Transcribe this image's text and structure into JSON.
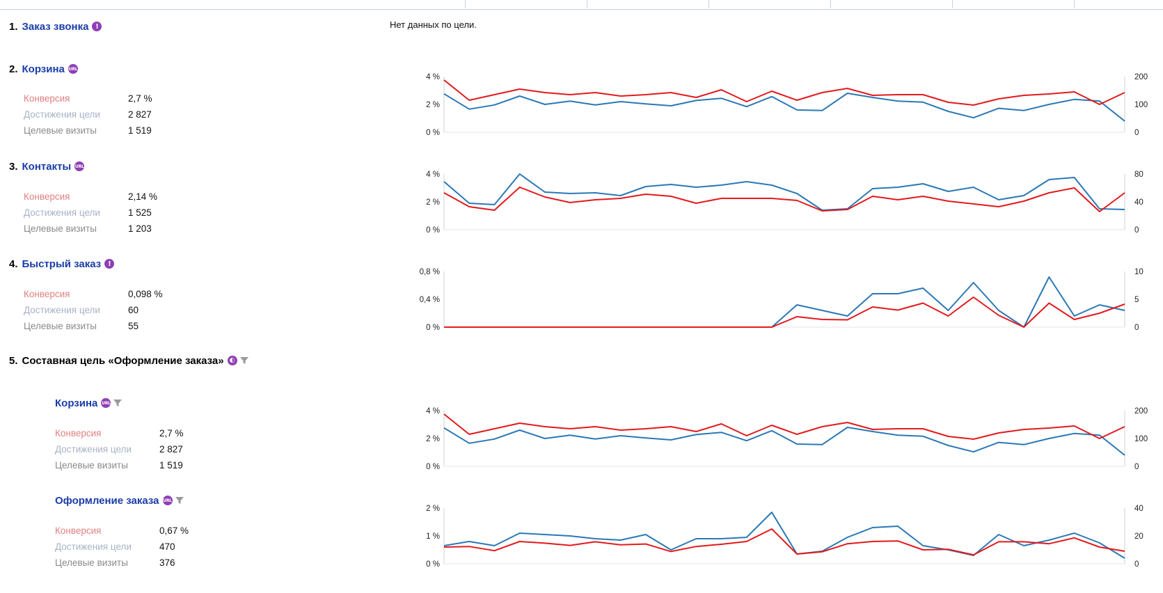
{
  "no_data_text": "Нет данных по цели.",
  "goals": [
    {
      "num": "1.",
      "title": "Заказ звонка",
      "badge": "!",
      "badge_icon": "exclamation-icon"
    },
    {
      "num": "2.",
      "title": "Корзина",
      "badge": "URL",
      "badge_icon": "url-icon",
      "stats": {
        "conv_label": "Конверсия",
        "conv": "2,7 %",
        "reach_label": "Достижения цели",
        "reach": "2 827",
        "visits_label": "Целевые визиты",
        "visits": "1 519"
      }
    },
    {
      "num": "3.",
      "title": "Контакты",
      "badge": "URL",
      "badge_icon": "url-icon",
      "stats": {
        "conv_label": "Конверсия",
        "conv": "2,14 %",
        "reach_label": "Достижения цели",
        "reach": "1 525",
        "visits_label": "Целевые визиты",
        "visits": "1 203"
      }
    },
    {
      "num": "4.",
      "title": "Быстрый заказ",
      "badge": "!",
      "badge_icon": "exclamation-icon",
      "stats": {
        "conv_label": "Конверсия",
        "conv": "0,098 %",
        "reach_label": "Достижения цели",
        "reach": "60",
        "visits_label": "Целевые визиты",
        "visits": "55"
      }
    },
    {
      "num": "5.",
      "title": "Составная цель «Оформление заказа»",
      "badge": "◐",
      "badge_icon": "compound-goal-icon",
      "filter_icon": "funnel-icon"
    }
  ],
  "steps": [
    {
      "title": "Корзина",
      "badge": "URL",
      "badge_icon": "url-icon",
      "filter_icon": "funnel-icon",
      "stats": {
        "conv_label": "Конверсия",
        "conv": "2,7 %",
        "reach_label": "Достижения цели",
        "reach": "2 827",
        "visits_label": "Целевые визиты",
        "visits": "1 519"
      }
    },
    {
      "title": "Оформление заказа",
      "badge": "URL",
      "badge_icon": "url-icon",
      "filter_icon": "funnel-icon",
      "stats": {
        "conv_label": "Конверсия",
        "conv": "0,67 %",
        "reach_label": "Достижения цели",
        "reach": "470",
        "visits_label": "Целевые визиты",
        "visits": "376"
      }
    }
  ],
  "colors": {
    "conversion_line": "#e3191c",
    "reach_line": "#2a78b5",
    "link": "#1a3da8",
    "badge": "#8e3fb4"
  },
  "chart_data": [
    {
      "type": "line",
      "title": "",
      "goal": "Корзина",
      "left_ticks": [
        "4 %",
        "2 %",
        "0 %"
      ],
      "right_ticks": [
        "200",
        "100",
        "0"
      ],
      "ylim_left": [
        0,
        4
      ],
      "ylim_right": [
        0,
        200
      ],
      "series": [
        {
          "name": "Конверсия",
          "axis": "left",
          "values": [
            3.75,
            2.3,
            2.7,
            3.1,
            2.85,
            2.7,
            2.85,
            2.6,
            2.7,
            2.85,
            2.5,
            3.05,
            2.2,
            2.95,
            2.3,
            2.85,
            3.15,
            2.65,
            2.7,
            2.7,
            2.15,
            1.95,
            2.4,
            2.65,
            2.75,
            2.9,
            2.0,
            2.85
          ]
        },
        {
          "name": "Достижения цели",
          "axis": "right",
          "values": [
            138,
            83,
            98,
            130,
            100,
            112,
            98,
            110,
            102,
            95,
            114,
            122,
            92,
            128,
            80,
            78,
            140,
            125,
            112,
            108,
            75,
            52,
            86,
            78,
            100,
            118,
            112,
            40
          ]
        }
      ]
    },
    {
      "type": "line",
      "title": "",
      "goal": "Контакты",
      "left_ticks": [
        "4 %",
        "2 %",
        "0 %"
      ],
      "right_ticks": [
        "80",
        "40",
        "0"
      ],
      "ylim_left": [
        0,
        4
      ],
      "ylim_right": [
        0,
        80
      ],
      "series": [
        {
          "name": "Конверсия",
          "axis": "left",
          "values": [
            2.65,
            1.65,
            1.4,
            3.05,
            2.35,
            1.95,
            2.15,
            2.25,
            2.55,
            2.4,
            1.9,
            2.25,
            2.25,
            2.25,
            2.1,
            1.35,
            1.45,
            2.4,
            2.15,
            2.4,
            2.05,
            1.85,
            1.65,
            2.05,
            2.65,
            3.0,
            1.3,
            2.65
          ]
        },
        {
          "name": "Достижения цели",
          "axis": "right",
          "values": [
            69,
            38,
            36,
            80,
            54,
            52,
            53,
            49,
            62,
            65,
            61,
            64,
            69,
            64,
            52,
            28,
            30,
            59,
            61,
            66,
            55,
            61,
            43,
            49,
            72,
            75,
            30,
            29
          ]
        }
      ]
    },
    {
      "type": "line",
      "title": "",
      "goal": "Быстрый заказ",
      "left_ticks": [
        "0,8 %",
        "0,4 %",
        "0 %"
      ],
      "right_ticks": [
        "10",
        "5",
        "0"
      ],
      "ylim_left": [
        0,
        0.8
      ],
      "ylim_right": [
        0,
        10
      ],
      "series": [
        {
          "name": "Конверсия",
          "axis": "left",
          "values": [
            0,
            0,
            0,
            0,
            0,
            0,
            0,
            0,
            0,
            0,
            0,
            0,
            0,
            0,
            0.15,
            0.11,
            0.105,
            0.29,
            0.245,
            0.345,
            0.16,
            0.43,
            0.17,
            0,
            0.345,
            0.11,
            0.2,
            0.33
          ]
        },
        {
          "name": "Достижения цели",
          "axis": "right",
          "values": [
            0,
            0,
            0,
            0,
            0,
            0,
            0,
            0,
            0,
            0,
            0,
            0,
            0,
            0,
            4,
            3,
            2,
            6,
            6,
            7,
            3,
            8,
            3,
            0,
            9,
            2,
            4,
            3
          ]
        }
      ]
    },
    {
      "type": "line",
      "title": "",
      "goal": "Корзина",
      "left_ticks": [
        "4 %",
        "2 %",
        "0 %"
      ],
      "right_ticks": [
        "200",
        "100",
        "0"
      ],
      "ylim_left": [
        0,
        4
      ],
      "ylim_right": [
        0,
        200
      ],
      "series": [
        {
          "name": "Конверсия",
          "axis": "left",
          "values": [
            3.75,
            2.3,
            2.7,
            3.1,
            2.85,
            2.7,
            2.85,
            2.6,
            2.7,
            2.85,
            2.5,
            3.05,
            2.2,
            2.95,
            2.3,
            2.85,
            3.15,
            2.65,
            2.7,
            2.7,
            2.15,
            1.95,
            2.4,
            2.65,
            2.75,
            2.9,
            2.0,
            2.85
          ]
        },
        {
          "name": "Достижения цели",
          "axis": "right",
          "values": [
            138,
            83,
            98,
            130,
            100,
            112,
            98,
            110,
            102,
            95,
            114,
            122,
            92,
            128,
            80,
            78,
            140,
            125,
            112,
            108,
            75,
            52,
            86,
            78,
            100,
            118,
            112,
            40
          ]
        }
      ]
    },
    {
      "type": "line",
      "title": "",
      "goal": "Оформление заказа",
      "left_ticks": [
        "2 %",
        "1 %",
        "0 %"
      ],
      "right_ticks": [
        "40",
        "20",
        "0"
      ],
      "ylim_left": [
        0,
        2
      ],
      "ylim_right": [
        0,
        40
      ],
      "series": [
        {
          "name": "Конверсия",
          "axis": "left",
          "values": [
            0.6,
            0.62,
            0.47,
            0.8,
            0.74,
            0.66,
            0.79,
            0.68,
            0.71,
            0.44,
            0.62,
            0.7,
            0.8,
            1.25,
            0.35,
            0.43,
            0.72,
            0.8,
            0.82,
            0.5,
            0.52,
            0.32,
            0.79,
            0.79,
            0.72,
            0.93,
            0.6,
            0.45
          ]
        },
        {
          "name": "Достижения цели",
          "axis": "right",
          "values": [
            13,
            16,
            13,
            22,
            21,
            20,
            18,
            17,
            21,
            10,
            18,
            18,
            19,
            37,
            7,
            9,
            19,
            26,
            27,
            13,
            10,
            6,
            21,
            13,
            17,
            22,
            15,
            4
          ]
        }
      ]
    }
  ]
}
